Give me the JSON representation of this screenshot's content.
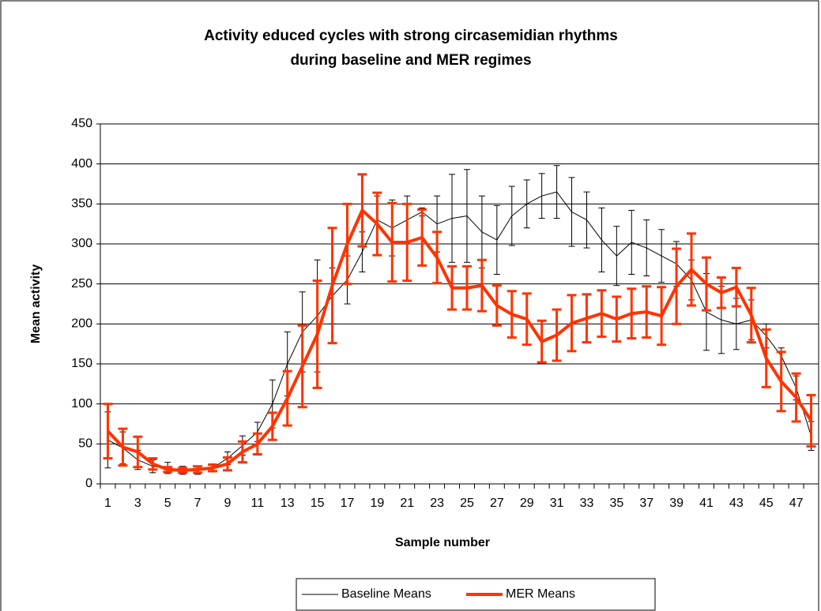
{
  "chart_data": {
    "type": "line",
    "title": [
      "Activity educed cycles with strong circasemidian rhythms",
      "during baseline and MER regimes"
    ],
    "xlabel": "Sample number",
    "ylabel": "Mean activity",
    "categories": [
      1,
      null,
      3,
      null,
      5,
      null,
      7,
      null,
      9,
      null,
      11,
      null,
      13,
      null,
      15,
      null,
      17,
      null,
      19,
      null,
      21,
      null,
      23,
      null,
      25,
      null,
      27,
      null,
      29,
      null,
      31,
      null,
      33,
      null,
      35,
      null,
      37,
      null,
      39,
      null,
      41,
      null,
      43,
      null,
      45,
      null,
      47,
      null
    ],
    "ylim": [
      0,
      450
    ],
    "yticks": [
      0,
      50,
      100,
      150,
      200,
      250,
      300,
      350,
      400,
      450
    ],
    "grid": true,
    "legend": "bottom",
    "series": [
      {
        "name": "Baseline Means",
        "color": "#000000",
        "values": [
          55,
          45,
          30,
          22,
          20,
          17,
          17,
          20,
          32,
          48,
          65,
          100,
          150,
          190,
          210,
          235,
          255,
          290,
          330,
          320,
          330,
          340,
          325,
          332,
          335,
          315,
          305,
          335,
          350,
          360,
          365,
          340,
          330,
          305,
          285,
          302,
          295,
          285,
          275,
          255,
          215,
          205,
          200,
          205,
          185,
          160,
          120,
          60
        ],
        "errors": [
          35,
          20,
          12,
          8,
          7,
          5,
          5,
          5,
          8,
          12,
          12,
          30,
          40,
          50,
          70,
          35,
          30,
          25,
          30,
          35,
          30,
          5,
          35,
          55,
          58,
          45,
          43,
          37,
          30,
          28,
          33,
          43,
          35,
          40,
          37,
          40,
          35,
          33,
          28,
          25,
          48,
          42,
          32,
          25,
          15,
          10,
          15,
          18
        ]
      },
      {
        "name": "MER Means",
        "color": "#ff3300",
        "values": [
          66,
          46,
          40,
          25,
          18,
          17,
          18,
          20,
          25,
          40,
          50,
          72,
          107,
          147,
          187,
          248,
          300,
          342,
          325,
          302,
          302,
          308,
          283,
          245,
          245,
          248,
          223,
          212,
          206,
          178,
          186,
          201,
          207,
          213,
          206,
          213,
          215,
          210,
          247,
          268,
          250,
          239,
          246,
          211,
          157,
          128,
          108,
          79
        ],
        "errors": [
          34,
          23,
          19,
          7,
          3,
          3,
          4,
          4,
          8,
          13,
          13,
          17,
          34,
          51,
          67,
          72,
          50,
          45,
          39,
          49,
          48,
          35,
          32,
          27,
          27,
          32,
          25,
          29,
          32,
          26,
          32,
          35,
          30,
          29,
          28,
          31,
          32,
          36,
          47,
          45,
          33,
          19,
          24,
          34,
          36,
          37,
          30,
          32
        ]
      }
    ]
  }
}
